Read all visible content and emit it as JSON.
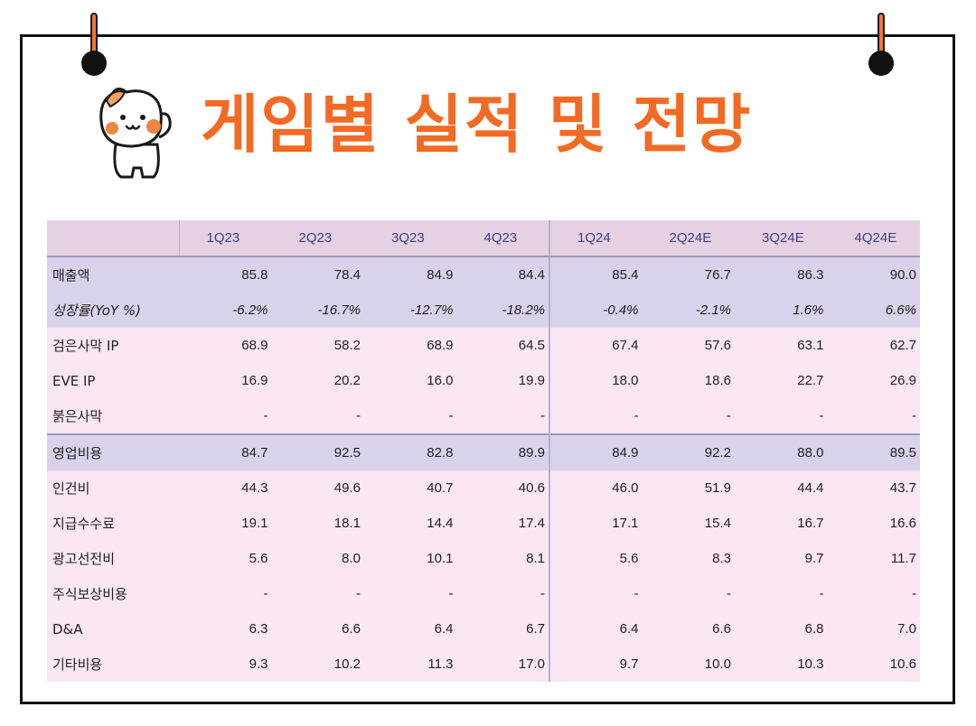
{
  "page": {
    "title": "게임별 실적 및 전망"
  },
  "table": {
    "columns": [
      "1Q23",
      "2Q23",
      "3Q23",
      "4Q23",
      "1Q24",
      "2Q24E",
      "3Q24E",
      "4Q24E"
    ],
    "rows": [
      {
        "label": "매출액",
        "values": [
          "85.8",
          "78.4",
          "84.9",
          "84.4",
          "85.4",
          "76.7",
          "86.3",
          "90.0"
        ]
      },
      {
        "label": "성장률(YoY %)",
        "values": [
          "-6.2%",
          "-16.7%",
          "-12.7%",
          "-18.2%",
          "-0.4%",
          "-2.1%",
          "1.6%",
          "6.6%"
        ]
      },
      {
        "label": "검은사막 IP",
        "values": [
          "68.9",
          "58.2",
          "68.9",
          "64.5",
          "67.4",
          "57.6",
          "63.1",
          "62.7"
        ]
      },
      {
        "label": "EVE IP",
        "values": [
          "16.9",
          "20.2",
          "16.0",
          "19.9",
          "18.0",
          "18.6",
          "22.7",
          "26.9"
        ]
      },
      {
        "label": "붉은사막",
        "values": [
          "-",
          "-",
          "-",
          "-",
          "-",
          "-",
          "-",
          "-"
        ]
      },
      {
        "label": "영업비용",
        "values": [
          "84.7",
          "92.5",
          "82.8",
          "89.9",
          "84.9",
          "92.2",
          "88.0",
          "89.5"
        ]
      },
      {
        "label": "인건비",
        "values": [
          "44.3",
          "49.6",
          "40.7",
          "40.6",
          "46.0",
          "51.9",
          "44.4",
          "43.7"
        ]
      },
      {
        "label": "지급수수료",
        "values": [
          "19.1",
          "18.1",
          "14.4",
          "17.4",
          "17.1",
          "15.4",
          "16.7",
          "16.6"
        ]
      },
      {
        "label": "광고선전비",
        "values": [
          "5.6",
          "8.0",
          "10.1",
          "8.1",
          "5.6",
          "8.3",
          "9.7",
          "11.7"
        ]
      },
      {
        "label": "주식보상비용",
        "values": [
          "-",
          "-",
          "-",
          "-",
          "-",
          "-",
          "-",
          "-"
        ]
      },
      {
        "label": "D&A",
        "values": [
          "6.3",
          "6.6",
          "6.4",
          "6.7",
          "6.4",
          "6.6",
          "6.8",
          "7.0"
        ]
      },
      {
        "label": "기타비용",
        "values": [
          "9.3",
          "10.2",
          "11.3",
          "17.0",
          "9.7",
          "10.0",
          "10.3",
          "10.6"
        ]
      }
    ]
  },
  "colors": {
    "title": "#f26a24",
    "header_bg": "#e6d1e2",
    "band_bg": "#d9d2ea",
    "row_bg": "#fbe6f4",
    "header_text": "#3a3f8a"
  },
  "icons": {
    "mascot": "cat-mascot-icon",
    "pins": "pushpin-icon"
  }
}
